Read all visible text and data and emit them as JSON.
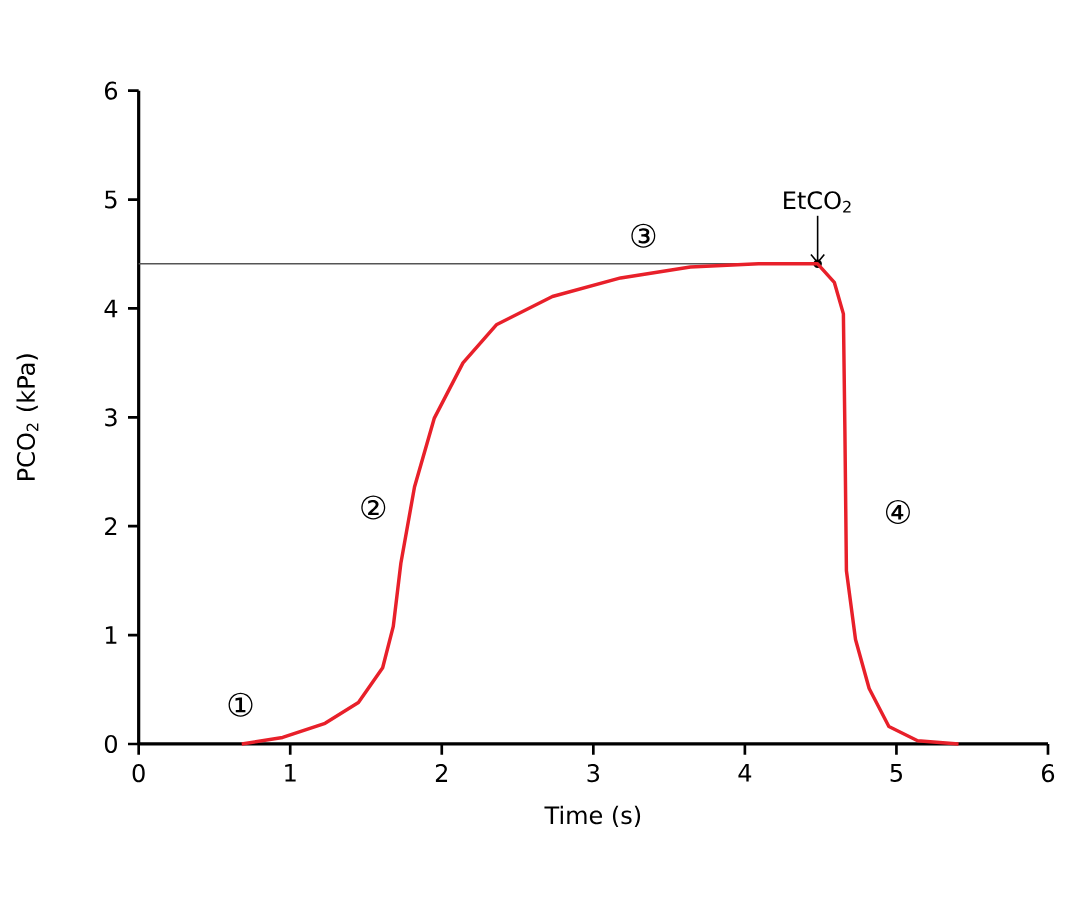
{
  "chart_data": {
    "type": "line",
    "xlabel": "Time (s)",
    "ylabel": "PCO$_{2}$ (kPa)",
    "x": [
      0.68,
      0.95,
      1.23,
      1.45,
      1.61,
      1.68,
      1.73,
      1.82,
      1.95,
      2.14,
      2.36,
      2.73,
      3.18,
      3.64,
      4.09,
      4.48,
      4.59,
      4.65,
      4.66,
      4.67,
      4.73,
      4.82,
      4.95,
      5.14,
      5.41
    ],
    "values": [
      0,
      0.06,
      0.19,
      0.38,
      0.7,
      1.08,
      1.66,
      2.36,
      2.99,
      3.5,
      3.85,
      4.11,
      4.28,
      4.38,
      4.41,
      4.41,
      4.24,
      3.95,
      2.87,
      1.59,
      0.96,
      0.51,
      0.16,
      0.03,
      0
    ],
    "color": "#e8202a",
    "xlim": [
      0,
      6
    ],
    "ylim": [
      0,
      6
    ],
    "xticks": [
      0,
      1,
      2,
      3,
      4,
      5,
      6
    ],
    "yticks": [
      0,
      1,
      2,
      3,
      4,
      5,
      6
    ],
    "grid": false,
    "marker": "none",
    "line_style": "solid",
    "ref_lines": [
      {
        "axis": "y",
        "value": 4.41,
        "label": "EtCO$_{2}$",
        "color": "#555555"
      }
    ],
    "annotations": [
      "①",
      "②",
      "③",
      "④"
    ]
  }
}
